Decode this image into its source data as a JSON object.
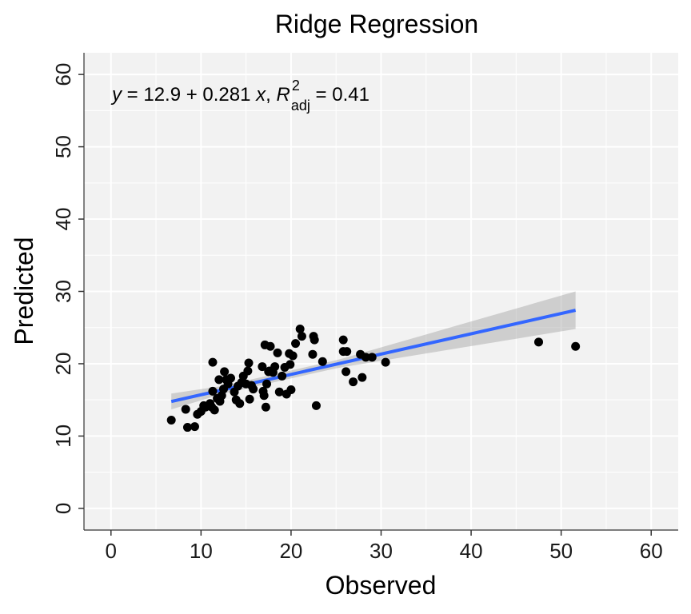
{
  "chart_data": {
    "type": "scatter",
    "title": "Ridge Regression",
    "xlabel": "Observed",
    "ylabel": "Predicted",
    "xlim": [
      -3,
      63
    ],
    "ylim": [
      -3,
      63
    ],
    "xticks": [
      0,
      10,
      20,
      30,
      40,
      50,
      60
    ],
    "yticks": [
      0,
      10,
      20,
      30,
      40,
      50,
      60
    ],
    "grid": true,
    "annotation": {
      "prefix": "y = 12.9 + 0.281 x,  R",
      "sup": "2",
      "sub": "adj",
      "suffix": " = 0.41"
    },
    "regression": {
      "intercept": 12.9,
      "slope": 0.281,
      "x_range": [
        6.7,
        51.6
      ],
      "se_at_ends": [
        1.1,
        2.6
      ],
      "line_color": "#3366ff",
      "band_color": "#999999"
    },
    "point_color": "#000000",
    "points": [
      [
        6.7,
        12.2
      ],
      [
        8.3,
        13.7
      ],
      [
        8.5,
        11.2
      ],
      [
        9.3,
        11.3
      ],
      [
        9.6,
        13.0
      ],
      [
        10.0,
        13.4
      ],
      [
        10.3,
        14.2
      ],
      [
        10.5,
        14.0
      ],
      [
        11.0,
        14.5
      ],
      [
        11.2,
        14.0
      ],
      [
        11.3,
        16.2
      ],
      [
        11.3,
        20.2
      ],
      [
        11.5,
        13.6
      ],
      [
        11.8,
        15.2
      ],
      [
        12.0,
        17.8
      ],
      [
        12.1,
        14.8
      ],
      [
        12.3,
        15.6
      ],
      [
        12.5,
        16.5
      ],
      [
        12.6,
        18.9
      ],
      [
        12.8,
        17.8
      ],
      [
        13.0,
        17.2
      ],
      [
        13.3,
        18.0
      ],
      [
        13.7,
        16.1
      ],
      [
        13.9,
        15.0
      ],
      [
        14.1,
        16.9
      ],
      [
        14.3,
        14.5
      ],
      [
        14.5,
        17.4
      ],
      [
        14.7,
        18.3
      ],
      [
        15.0,
        17.2
      ],
      [
        15.2,
        19.0
      ],
      [
        15.3,
        20.1
      ],
      [
        15.4,
        15.1
      ],
      [
        15.6,
        17.0
      ],
      [
        15.8,
        16.5
      ],
      [
        16.8,
        19.6
      ],
      [
        16.9,
        16.2
      ],
      [
        17.0,
        15.6
      ],
      [
        17.1,
        22.6
      ],
      [
        17.2,
        14.0
      ],
      [
        17.3,
        17.2
      ],
      [
        17.5,
        18.9
      ],
      [
        17.6,
        19.0
      ],
      [
        17.7,
        22.4
      ],
      [
        18.0,
        18.8
      ],
      [
        18.2,
        19.6
      ],
      [
        18.5,
        21.5
      ],
      [
        18.7,
        16.1
      ],
      [
        19.0,
        18.3
      ],
      [
        19.3,
        19.5
      ],
      [
        19.5,
        15.8
      ],
      [
        19.8,
        21.4
      ],
      [
        19.9,
        19.9
      ],
      [
        20.0,
        16.4
      ],
      [
        20.2,
        21.1
      ],
      [
        20.5,
        22.8
      ],
      [
        21.0,
        24.8
      ],
      [
        21.2,
        23.8
      ],
      [
        22.4,
        21.3
      ],
      [
        22.5,
        23.8
      ],
      [
        22.6,
        23.3
      ],
      [
        22.8,
        14.2
      ],
      [
        23.5,
        20.3
      ],
      [
        25.8,
        23.3
      ],
      [
        25.8,
        21.7
      ],
      [
        26.1,
        18.9
      ],
      [
        26.2,
        21.7
      ],
      [
        26.9,
        17.5
      ],
      [
        27.7,
        21.3
      ],
      [
        27.9,
        18.1
      ],
      [
        28.3,
        20.9
      ],
      [
        29.0,
        20.9
      ],
      [
        30.5,
        20.2
      ],
      [
        47.5,
        23.0
      ],
      [
        51.6,
        22.4
      ]
    ]
  }
}
